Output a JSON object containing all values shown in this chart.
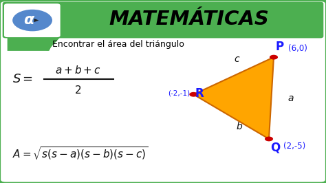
{
  "bg_color": "#ffffff",
  "header_bg": "#4caf50",
  "header_text": "MATEMÁTICAS",
  "header_text_color": "#000000",
  "border_color": "#4caf50",
  "title_text": "Encontrar el área del triángulo",
  "title_color": "#000000",
  "triangle_fill": "#ffa500",
  "triangle_edge": "#cc6600",
  "point_color": "#cc0000",
  "label_color_blue": "#1a1aff",
  "side_label_color": "#111111",
  "formula_color": "#111111",
  "P": [
    0.845,
    0.685
  ],
  "R": [
    0.595,
    0.48
  ],
  "Q": [
    0.83,
    0.235
  ],
  "alpha_bg": "#5588cc",
  "alpha_text": "#1a3aaa"
}
